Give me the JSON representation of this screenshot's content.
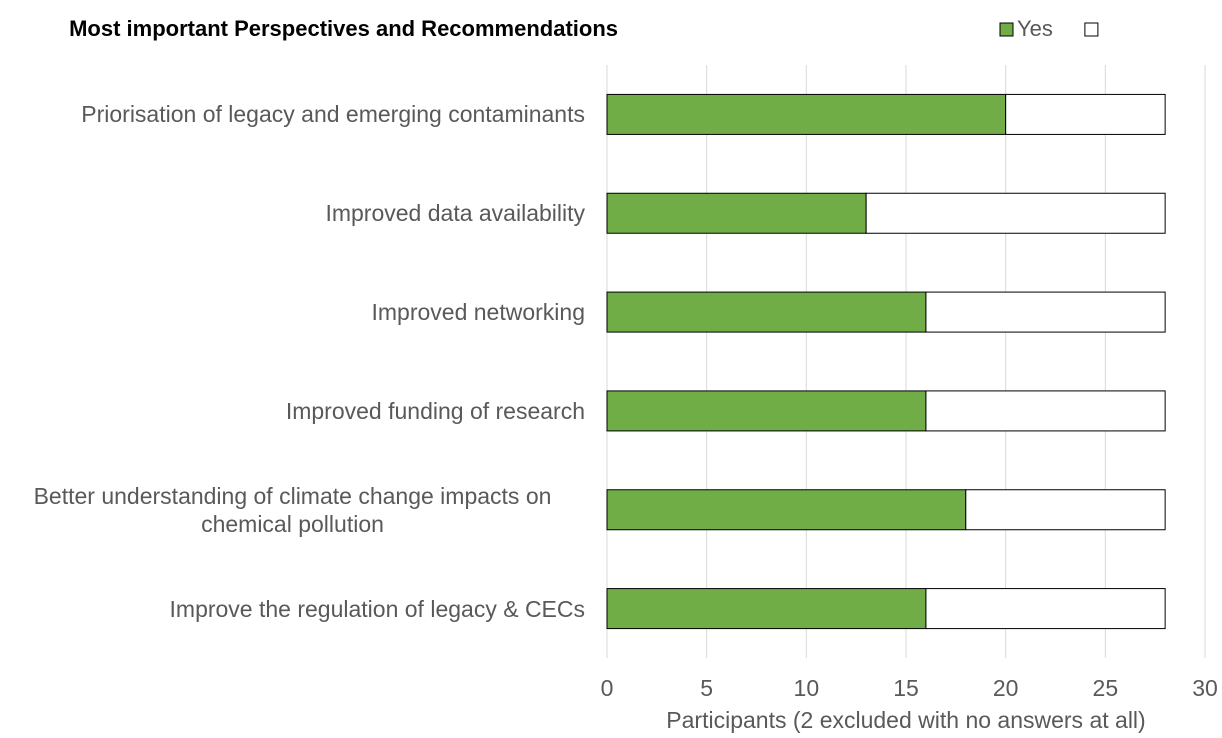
{
  "chart_data": {
    "type": "stacked_barh",
    "title": "Most important Perspectives and Recommendations",
    "xlabel": "Participants (2 excluded with no answers at all)",
    "categories": [
      "Priorisation of legacy and emerging contaminants",
      "Improved data availability",
      "Improved networking",
      "Improved funding of research",
      "Better understanding of climate change impacts on chemical pollution",
      "Improve the regulation of legacy & CECs"
    ],
    "series": [
      {
        "name": "Yes",
        "color": "#70ad47",
        "values": [
          20,
          13,
          16,
          16,
          18,
          16
        ]
      },
      {
        "color": "#ffffff",
        "values": [
          8,
          15,
          12,
          12,
          10,
          12
        ]
      }
    ],
    "xlim": [
      0,
      30
    ],
    "xticks": [
      0,
      5,
      10,
      15,
      20,
      25,
      30
    ],
    "grid": true,
    "legend": "top"
  }
}
